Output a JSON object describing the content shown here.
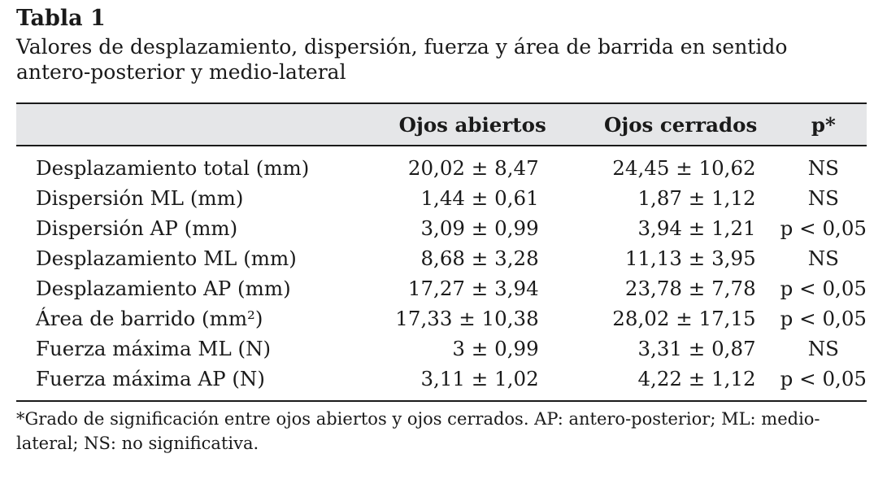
{
  "table_title": "Tabla 1",
  "table_caption": "Valores de desplazamiento, dispersión, fuerza y área de barrida en sentido antero-posterior y medio-lateral",
  "columns": {
    "label": "",
    "open_eyes": "Ojos abiertos",
    "closed_eyes": "Ojos cerrados",
    "p": "p*"
  },
  "rows": [
    {
      "label": "Desplazamiento total (mm)",
      "open": "20,02 ± 8,47",
      "closed": "24,45 ± 10,62",
      "p": "NS"
    },
    {
      "label": "Dispersión ML (mm)",
      "open": "1,44 ± 0,61",
      "closed": "1,87 ± 1,12",
      "p": "NS"
    },
    {
      "label": "Dispersión AP (mm)",
      "open": "3,09 ± 0,99",
      "closed": "3,94 ± 1,21",
      "p": "p < 0,05"
    },
    {
      "label": "Desplazamiento ML (mm)",
      "open": "8,68 ± 3,28",
      "closed": "11,13 ± 3,95",
      "p": "NS"
    },
    {
      "label": "Desplazamiento AP (mm)",
      "open": "17,27 ± 3,94",
      "closed": "23,78 ± 7,78",
      "p": "p < 0,05"
    },
    {
      "label": "Área de barrido (mm²)",
      "open": "17,33 ± 10,38",
      "closed": "28,02 ± 17,15",
      "p": "p < 0,05"
    },
    {
      "label": "Fuerza máxima ML (N)",
      "open": "3 ± 0,99",
      "closed": "3,31 ± 0,87",
      "p": "NS"
    },
    {
      "label": "Fuerza máxima AP (N)",
      "open": "3,11 ± 1,02",
      "closed": "4,22 ± 1,12",
      "p": "p < 0,05"
    }
  ],
  "footnote": "*Grado de significación entre ojos abiertos y ojos cerrados. AP: antero-posterior; ML: medio-lateral; NS: no significativa."
}
